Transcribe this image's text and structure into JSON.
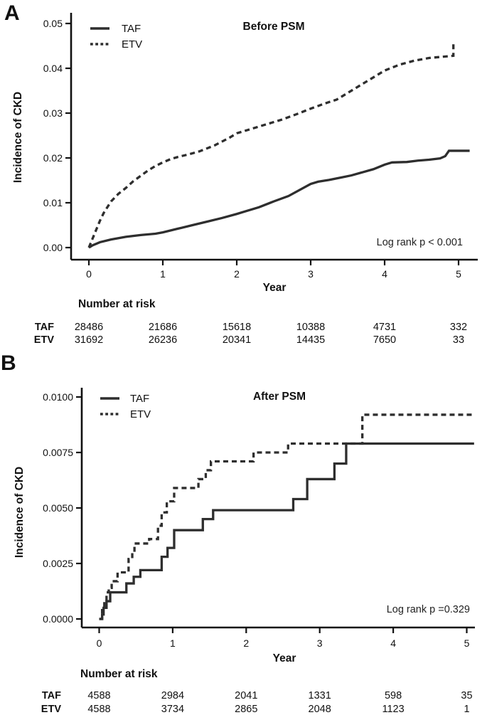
{
  "chart_data": [
    {
      "id": "A",
      "type": "line",
      "panel_label": "A",
      "title": "Before PSM",
      "xlabel": "Year",
      "ylabel": "Incidence of CKD",
      "annotation": "Log rank p < 0.001",
      "legend_position": "top-left-inside",
      "grid": false,
      "xlim": [
        0,
        5.2
      ],
      "ylim": [
        0,
        0.052
      ],
      "xtick_labels": [
        "0",
        "1",
        "2",
        "3",
        "4",
        "5"
      ],
      "xtick_values": [
        0,
        1,
        2,
        3,
        4,
        5
      ],
      "ytick_labels": [
        "0.00",
        "0.01",
        "0.02",
        "0.03",
        "0.04",
        "0.05"
      ],
      "ytick_values": [
        0,
        0.01,
        0.02,
        0.03,
        0.04,
        0.05
      ],
      "line_color": "#2e2e2e",
      "series": [
        {
          "name": "TAF",
          "style": "solid",
          "mode": "line",
          "points": [
            [
              0,
              0
            ],
            [
              0.05,
              0.0005
            ],
            [
              0.15,
              0.0012
            ],
            [
              0.3,
              0.0018
            ],
            [
              0.5,
              0.0024
            ],
            [
              0.7,
              0.0028
            ],
            [
              0.9,
              0.0031
            ],
            [
              1.0,
              0.0034
            ],
            [
              1.2,
              0.0042
            ],
            [
              1.4,
              0.005
            ],
            [
              1.6,
              0.0058
            ],
            [
              1.8,
              0.0066
            ],
            [
              2.0,
              0.0075
            ],
            [
              2.1,
              0.008
            ],
            [
              2.3,
              0.009
            ],
            [
              2.5,
              0.0103
            ],
            [
              2.7,
              0.0115
            ],
            [
              2.9,
              0.0133
            ],
            [
              3.0,
              0.0142
            ],
            [
              3.1,
              0.0147
            ],
            [
              3.25,
              0.0151
            ],
            [
              3.4,
              0.0156
            ],
            [
              3.55,
              0.0161
            ],
            [
              3.7,
              0.0168
            ],
            [
              3.85,
              0.0175
            ],
            [
              4.0,
              0.0185
            ],
            [
              4.1,
              0.019
            ],
            [
              4.3,
              0.0191
            ],
            [
              4.45,
              0.0194
            ],
            [
              4.6,
              0.0196
            ],
            [
              4.75,
              0.0199
            ],
            [
              4.82,
              0.0204
            ],
            [
              4.87,
              0.0216
            ],
            [
              5.15,
              0.0216
            ]
          ]
        },
        {
          "name": "ETV",
          "style": "dashed",
          "mode": "line",
          "points": [
            [
              0,
              0
            ],
            [
              0.05,
              0.002
            ],
            [
              0.1,
              0.004
            ],
            [
              0.15,
              0.006
            ],
            [
              0.2,
              0.0077
            ],
            [
              0.25,
              0.009
            ],
            [
              0.3,
              0.0103
            ],
            [
              0.4,
              0.012
            ],
            [
              0.5,
              0.0133
            ],
            [
              0.6,
              0.0148
            ],
            [
              0.7,
              0.016
            ],
            [
              0.8,
              0.0172
            ],
            [
              0.9,
              0.0182
            ],
            [
              1.0,
              0.019
            ],
            [
              1.1,
              0.0197
            ],
            [
              1.2,
              0.0202
            ],
            [
              1.35,
              0.0208
            ],
            [
              1.5,
              0.0215
            ],
            [
              1.7,
              0.0228
            ],
            [
              1.9,
              0.0245
            ],
            [
              2.0,
              0.0255
            ],
            [
              2.2,
              0.0265
            ],
            [
              2.4,
              0.0275
            ],
            [
              2.6,
              0.0285
            ],
            [
              2.8,
              0.0297
            ],
            [
              3.0,
              0.031
            ],
            [
              3.2,
              0.0322
            ],
            [
              3.35,
              0.033
            ],
            [
              3.5,
              0.0345
            ],
            [
              3.65,
              0.036
            ],
            [
              3.8,
              0.0375
            ],
            [
              4.0,
              0.0395
            ],
            [
              4.2,
              0.0408
            ],
            [
              4.4,
              0.0417
            ],
            [
              4.6,
              0.0423
            ],
            [
              4.8,
              0.0426
            ],
            [
              4.93,
              0.0428
            ],
            [
              4.93,
              0.046
            ]
          ]
        }
      ],
      "risk_table": {
        "header": "Number at risk",
        "rows": [
          {
            "label": "TAF",
            "values": [
              "28486",
              "21686",
              "15618",
              "10388",
              "4731",
              "332"
            ]
          },
          {
            "label": "ETV",
            "values": [
              "31692",
              "26236",
              "20341",
              "14435",
              "7650",
              "33"
            ]
          }
        ]
      }
    },
    {
      "id": "B",
      "type": "line",
      "panel_label": "B",
      "title": "After PSM",
      "xlabel": "Year",
      "ylabel": "Incidence of CKD",
      "annotation": "Log rank p =0.329",
      "legend_position": "top-left-inside",
      "grid": false,
      "xlim": [
        0,
        5.2
      ],
      "ylim": [
        0,
        0.0105
      ],
      "xtick_labels": [
        "0",
        "1",
        "2",
        "3",
        "4",
        "5"
      ],
      "xtick_values": [
        0,
        1,
        2,
        3,
        4,
        5
      ],
      "ytick_labels": [
        "0.0000",
        "0.0025",
        "0.0050",
        "0.0075",
        "0.0100"
      ],
      "ytick_values": [
        0,
        0.0025,
        0.005,
        0.0075,
        0.01
      ],
      "line_color": "#2e2e2e",
      "series": [
        {
          "name": "TAF",
          "style": "solid",
          "mode": "step",
          "points": [
            [
              0,
              0
            ],
            [
              0.04,
              0.0002
            ],
            [
              0.06,
              0.0005
            ],
            [
              0.1,
              0.0008
            ],
            [
              0.15,
              0.0012
            ],
            [
              0.37,
              0.0016
            ],
            [
              0.47,
              0.0019
            ],
            [
              0.56,
              0.0022
            ],
            [
              0.85,
              0.0028
            ],
            [
              0.93,
              0.0032
            ],
            [
              1.02,
              0.004
            ],
            [
              1.41,
              0.0045
            ],
            [
              1.55,
              0.0049
            ],
            [
              2.64,
              0.0054
            ],
            [
              2.83,
              0.0063
            ],
            [
              3.2,
              0.007
            ],
            [
              3.36,
              0.0079
            ],
            [
              5.1,
              0.0079
            ]
          ]
        },
        {
          "name": "ETV",
          "style": "dashed",
          "mode": "step",
          "points": [
            [
              0,
              0
            ],
            [
              0.04,
              0.0004
            ],
            [
              0.07,
              0.0008
            ],
            [
              0.1,
              0.0012
            ],
            [
              0.13,
              0.0014
            ],
            [
              0.17,
              0.0017
            ],
            [
              0.25,
              0.0021
            ],
            [
              0.4,
              0.0027
            ],
            [
              0.45,
              0.003
            ],
            [
              0.48,
              0.0034
            ],
            [
              0.68,
              0.0036
            ],
            [
              0.8,
              0.0042
            ],
            [
              0.85,
              0.0048
            ],
            [
              0.92,
              0.0053
            ],
            [
              1.02,
              0.0059
            ],
            [
              1.35,
              0.0063
            ],
            [
              1.45,
              0.0067
            ],
            [
              1.52,
              0.0071
            ],
            [
              2.1,
              0.0075
            ],
            [
              2.57,
              0.0079
            ],
            [
              3.58,
              0.0092
            ],
            [
              5.1,
              0.0092
            ]
          ]
        }
      ],
      "risk_table": {
        "header": "Number at risk",
        "rows": [
          {
            "label": "TAF",
            "values": [
              "4588",
              "2984",
              "2041",
              "1331",
              "598",
              "35"
            ]
          },
          {
            "label": "ETV",
            "values": [
              "4588",
              "3734",
              "2865",
              "2048",
              "1123",
              "1"
            ]
          }
        ]
      }
    }
  ]
}
